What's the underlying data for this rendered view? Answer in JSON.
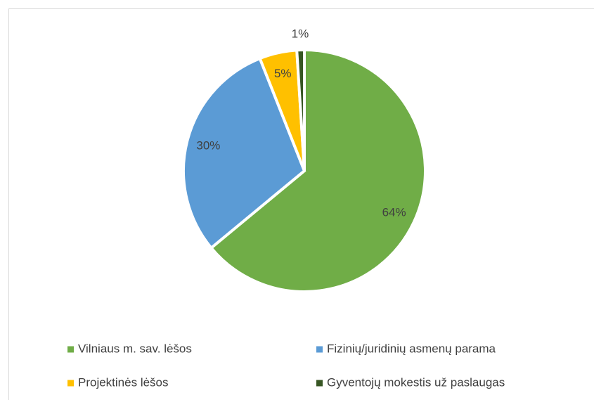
{
  "chart_data": {
    "type": "pie",
    "categories": [
      "Vilniaus m. sav. lėšos",
      "Fizinių/juridinių asmenų parama",
      "Projektinės lėšos",
      "Gyventojų mokestis už paslaugas"
    ],
    "values": [
      64,
      30,
      5,
      1
    ],
    "value_labels": [
      "64%",
      "30%",
      "5%",
      "1%"
    ],
    "colors": [
      "#70ad47",
      "#5b9bd5",
      "#ffc000",
      "#375623"
    ],
    "legend": "bottom"
  }
}
